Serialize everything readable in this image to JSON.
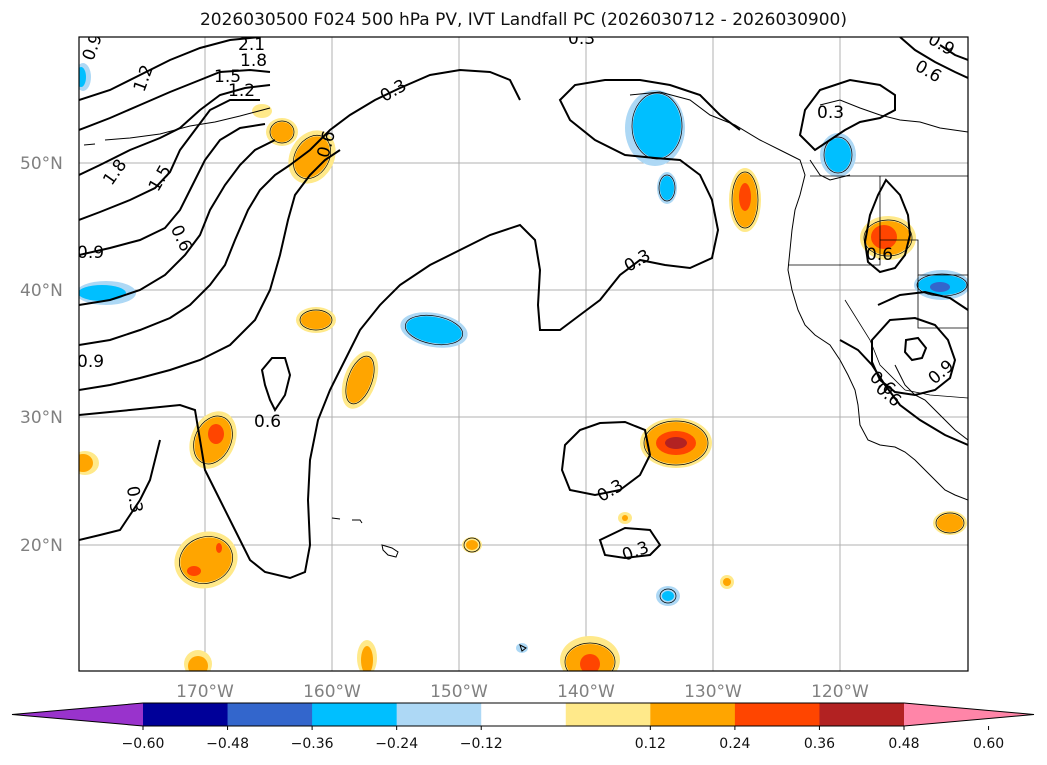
{
  "title": "2026030500 F024 500 hPa PV, IVT Landfall PC (2026030712 - 2026030900)",
  "map": {
    "lat_ticks": [
      "50°N",
      "40°N",
      "30°N",
      "20°N"
    ],
    "lon_ticks": [
      "170°W",
      "160°W",
      "150°W",
      "140°W",
      "130°W",
      "120°W"
    ],
    "contour_labels": [
      "0.9",
      "1.2",
      "2.1",
      "1.8",
      "1.5",
      "1.2",
      "1.8",
      "1.5",
      "0.6",
      "0.6",
      "0.3",
      "0.3",
      "0.9",
      "0.6",
      "0.9",
      "0.9",
      "0.6",
      "0.6",
      "0.3",
      "0.3",
      "0.3",
      "0.3",
      "0.6",
      "0.3",
      "0.9",
      "0.6"
    ]
  },
  "colorbar": {
    "colors": [
      "#9933cc",
      "#000099",
      "#3366cc",
      "#00bfff",
      "#add8f5",
      "#ffffff",
      "#ffe98a",
      "#ffa500",
      "#ff4500",
      "#b22222",
      "#ff85a8"
    ],
    "tick_labels": [
      "−0.60",
      "−0.48",
      "−0.36",
      "−0.24",
      "−0.12",
      "0.12",
      "0.24",
      "0.36",
      "0.48",
      "0.60"
    ]
  }
}
